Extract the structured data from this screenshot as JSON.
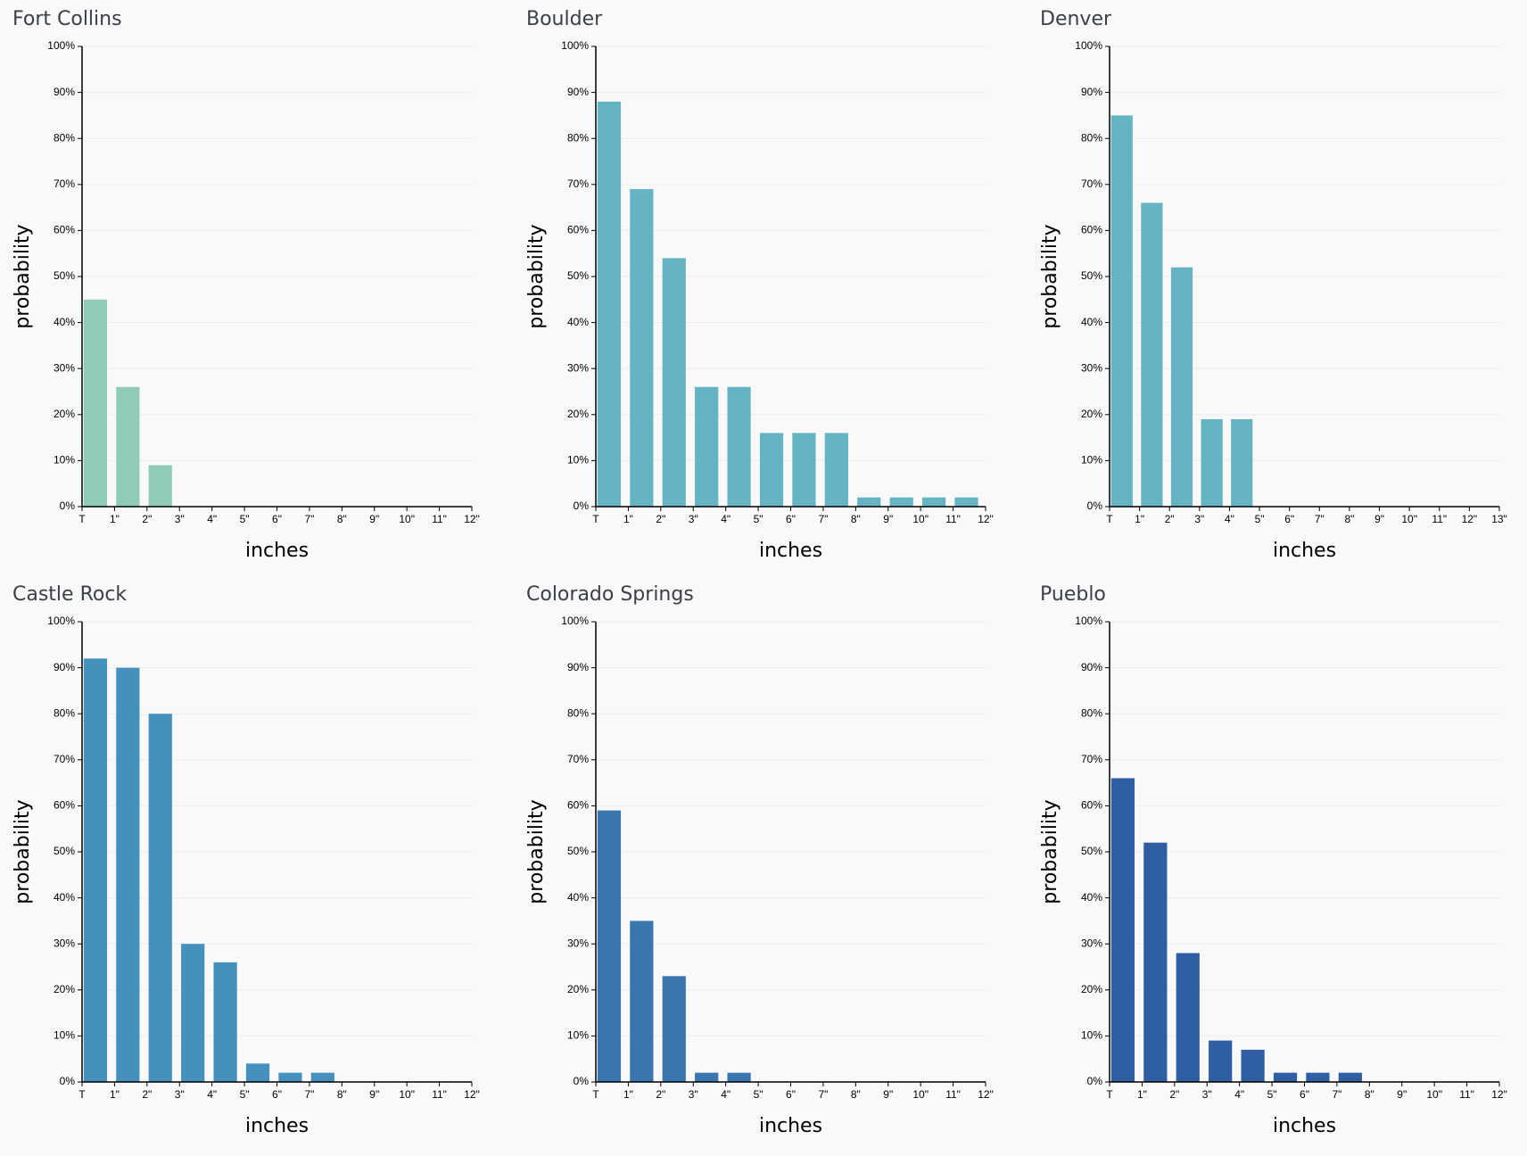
{
  "chart_data": [
    {
      "type": "histogram",
      "title": "Fort Collins",
      "xlabel": "inches",
      "ylabel": "probability",
      "color": "#8fcbb8",
      "grid": true,
      "bins": [
        0,
        1,
        2,
        3,
        4,
        5,
        6,
        7,
        8,
        9,
        10,
        11,
        12
      ],
      "values": [
        45,
        26,
        9,
        0,
        0,
        0,
        0,
        0,
        0,
        0,
        0,
        0
      ],
      "xlim": [
        0,
        12
      ],
      "xticks": [
        {
          "value": 0,
          "label": "T"
        },
        {
          "value": 1,
          "label": "1\""
        },
        {
          "value": 2,
          "label": "2\""
        },
        {
          "value": 3,
          "label": "3\""
        },
        {
          "value": 4,
          "label": "4\""
        },
        {
          "value": 5,
          "label": "5\""
        },
        {
          "value": 6,
          "label": "6\""
        },
        {
          "value": 7,
          "label": "7\""
        },
        {
          "value": 8,
          "label": "8\""
        },
        {
          "value": 9,
          "label": "9\""
        },
        {
          "value": 10,
          "label": "10\""
        },
        {
          "value": 11,
          "label": "11\""
        },
        {
          "value": 12,
          "label": "12\""
        }
      ],
      "ylim": [
        0,
        100
      ],
      "yticks": [
        {
          "value": 0,
          "label": "0%"
        },
        {
          "value": 10,
          "label": "10%"
        },
        {
          "value": 20,
          "label": "20%"
        },
        {
          "value": 30,
          "label": "30%"
        },
        {
          "value": 40,
          "label": "40%"
        },
        {
          "value": 50,
          "label": "50%"
        },
        {
          "value": 60,
          "label": "60%"
        },
        {
          "value": 70,
          "label": "70%"
        },
        {
          "value": 80,
          "label": "80%"
        },
        {
          "value": 90,
          "label": "90%"
        },
        {
          "value": 100,
          "label": "100%"
        }
      ]
    },
    {
      "type": "histogram",
      "title": "Boulder",
      "xlabel": "inches",
      "ylabel": "probability",
      "color": "#64b4c3",
      "grid": true,
      "bins": [
        0,
        1,
        2,
        3,
        4,
        5,
        6,
        7,
        8,
        9,
        10,
        11,
        12
      ],
      "values": [
        88,
        69,
        54,
        26,
        26,
        16,
        16,
        16,
        2,
        2,
        2,
        2
      ],
      "xlim": [
        0,
        12
      ],
      "xticks": [
        {
          "value": 0,
          "label": "T"
        },
        {
          "value": 1,
          "label": "1\""
        },
        {
          "value": 2,
          "label": "2\""
        },
        {
          "value": 3,
          "label": "3\""
        },
        {
          "value": 4,
          "label": "4\""
        },
        {
          "value": 5,
          "label": "5\""
        },
        {
          "value": 6,
          "label": "6\""
        },
        {
          "value": 7,
          "label": "7\""
        },
        {
          "value": 8,
          "label": "8\""
        },
        {
          "value": 9,
          "label": "9\""
        },
        {
          "value": 10,
          "label": "10\""
        },
        {
          "value": 11,
          "label": "11\""
        },
        {
          "value": 12,
          "label": "12\""
        }
      ],
      "ylim": [
        0,
        100
      ],
      "yticks": [
        {
          "value": 0,
          "label": "0%"
        },
        {
          "value": 10,
          "label": "10%"
        },
        {
          "value": 20,
          "label": "20%"
        },
        {
          "value": 30,
          "label": "30%"
        },
        {
          "value": 40,
          "label": "40%"
        },
        {
          "value": 50,
          "label": "50%"
        },
        {
          "value": 60,
          "label": "60%"
        },
        {
          "value": 70,
          "label": "70%"
        },
        {
          "value": 80,
          "label": "80%"
        },
        {
          "value": 90,
          "label": "90%"
        },
        {
          "value": 100,
          "label": "100%"
        }
      ]
    },
    {
      "type": "histogram",
      "title": "Denver",
      "xlabel": "inches",
      "ylabel": "probability",
      "color": "#64b4c3",
      "grid": true,
      "bins": [
        0,
        1,
        2,
        3,
        4,
        5,
        6,
        7,
        8,
        9,
        10,
        11,
        12,
        13
      ],
      "values": [
        85,
        66,
        52,
        19,
        19,
        0,
        0,
        0,
        0,
        0,
        0,
        0,
        0
      ],
      "xlim": [
        0,
        13
      ],
      "xticks": [
        {
          "value": 0,
          "label": "T"
        },
        {
          "value": 1,
          "label": "1\""
        },
        {
          "value": 2,
          "label": "2\""
        },
        {
          "value": 3,
          "label": "3\""
        },
        {
          "value": 4,
          "label": "4\""
        },
        {
          "value": 5,
          "label": "5\""
        },
        {
          "value": 6,
          "label": "6\""
        },
        {
          "value": 7,
          "label": "7\""
        },
        {
          "value": 8,
          "label": "8\""
        },
        {
          "value": 9,
          "label": "9\""
        },
        {
          "value": 10,
          "label": "10\""
        },
        {
          "value": 11,
          "label": "11\""
        },
        {
          "value": 12,
          "label": "12\""
        },
        {
          "value": 13,
          "label": "13\""
        }
      ],
      "ylim": [
        0,
        100
      ],
      "yticks": [
        {
          "value": 0,
          "label": "0%"
        },
        {
          "value": 10,
          "label": "10%"
        },
        {
          "value": 20,
          "label": "20%"
        },
        {
          "value": 30,
          "label": "30%"
        },
        {
          "value": 40,
          "label": "40%"
        },
        {
          "value": 50,
          "label": "50%"
        },
        {
          "value": 60,
          "label": "60%"
        },
        {
          "value": 70,
          "label": "70%"
        },
        {
          "value": 80,
          "label": "80%"
        },
        {
          "value": 90,
          "label": "90%"
        },
        {
          "value": 100,
          "label": "100%"
        }
      ]
    },
    {
      "type": "histogram",
      "title": "Castle Rock",
      "xlabel": "inches",
      "ylabel": "probability",
      "color": "#4591be",
      "grid": true,
      "bins": [
        0,
        1,
        2,
        3,
        4,
        5,
        6,
        7,
        8,
        9,
        10,
        11,
        12
      ],
      "values": [
        92,
        90,
        80,
        30,
        26,
        4,
        2,
        2,
        0,
        0,
        0,
        0
      ],
      "xlim": [
        0,
        12
      ],
      "xticks": [
        {
          "value": 0,
          "label": "T"
        },
        {
          "value": 1,
          "label": "1\""
        },
        {
          "value": 2,
          "label": "2\""
        },
        {
          "value": 3,
          "label": "3\""
        },
        {
          "value": 4,
          "label": "4\""
        },
        {
          "value": 5,
          "label": "5\""
        },
        {
          "value": 6,
          "label": "6\""
        },
        {
          "value": 7,
          "label": "7\""
        },
        {
          "value": 8,
          "label": "8\""
        },
        {
          "value": 9,
          "label": "9\""
        },
        {
          "value": 10,
          "label": "10\""
        },
        {
          "value": 11,
          "label": "11\""
        },
        {
          "value": 12,
          "label": "12\""
        }
      ],
      "ylim": [
        0,
        100
      ],
      "yticks": [
        {
          "value": 0,
          "label": "0%"
        },
        {
          "value": 10,
          "label": "10%"
        },
        {
          "value": 20,
          "label": "20%"
        },
        {
          "value": 30,
          "label": "30%"
        },
        {
          "value": 40,
          "label": "40%"
        },
        {
          "value": 50,
          "label": "50%"
        },
        {
          "value": 60,
          "label": "60%"
        },
        {
          "value": 70,
          "label": "70%"
        },
        {
          "value": 80,
          "label": "80%"
        },
        {
          "value": 90,
          "label": "90%"
        },
        {
          "value": 100,
          "label": "100%"
        }
      ]
    },
    {
      "type": "histogram",
      "title": "Colorado Springs",
      "xlabel": "inches",
      "ylabel": "probability",
      "color": "#3a76ae",
      "grid": true,
      "bins": [
        0,
        1,
        2,
        3,
        4,
        5,
        6,
        7,
        8,
        9,
        10,
        11,
        12
      ],
      "values": [
        59,
        35,
        23,
        2,
        2,
        0,
        0,
        0,
        0,
        0,
        0,
        0
      ],
      "xlim": [
        0,
        12
      ],
      "xticks": [
        {
          "value": 0,
          "label": "T"
        },
        {
          "value": 1,
          "label": "1\""
        },
        {
          "value": 2,
          "label": "2\""
        },
        {
          "value": 3,
          "label": "3\""
        },
        {
          "value": 4,
          "label": "4\""
        },
        {
          "value": 5,
          "label": "5\""
        },
        {
          "value": 6,
          "label": "6\""
        },
        {
          "value": 7,
          "label": "7\""
        },
        {
          "value": 8,
          "label": "8\""
        },
        {
          "value": 9,
          "label": "9\""
        },
        {
          "value": 10,
          "label": "10\""
        },
        {
          "value": 11,
          "label": "11\""
        },
        {
          "value": 12,
          "label": "12\""
        }
      ],
      "ylim": [
        0,
        100
      ],
      "yticks": [
        {
          "value": 0,
          "label": "0%"
        },
        {
          "value": 10,
          "label": "10%"
        },
        {
          "value": 20,
          "label": "20%"
        },
        {
          "value": 30,
          "label": "30%"
        },
        {
          "value": 40,
          "label": "40%"
        },
        {
          "value": 50,
          "label": "50%"
        },
        {
          "value": 60,
          "label": "60%"
        },
        {
          "value": 70,
          "label": "70%"
        },
        {
          "value": 80,
          "label": "80%"
        },
        {
          "value": 90,
          "label": "90%"
        },
        {
          "value": 100,
          "label": "100%"
        }
      ]
    },
    {
      "type": "histogram",
      "title": "Pueblo",
      "xlabel": "inches",
      "ylabel": "probability",
      "color": "#2f5ea2",
      "grid": true,
      "bins": [
        0,
        1,
        2,
        3,
        4,
        5,
        6,
        7,
        8,
        9,
        10,
        11,
        12
      ],
      "values": [
        66,
        52,
        28,
        9,
        7,
        2,
        2,
        2,
        0,
        0,
        0,
        0
      ],
      "xlim": [
        0,
        12
      ],
      "xticks": [
        {
          "value": 0,
          "label": "T"
        },
        {
          "value": 1,
          "label": "1\""
        },
        {
          "value": 2,
          "label": "2\""
        },
        {
          "value": 3,
          "label": "3\""
        },
        {
          "value": 4,
          "label": "4\""
        },
        {
          "value": 5,
          "label": "5\""
        },
        {
          "value": 6,
          "label": "6\""
        },
        {
          "value": 7,
          "label": "7\""
        },
        {
          "value": 8,
          "label": "8\""
        },
        {
          "value": 9,
          "label": "9\""
        },
        {
          "value": 10,
          "label": "10\""
        },
        {
          "value": 11,
          "label": "11\""
        },
        {
          "value": 12,
          "label": "12\""
        }
      ],
      "ylim": [
        0,
        100
      ],
      "yticks": [
        {
          "value": 0,
          "label": "0%"
        },
        {
          "value": 10,
          "label": "10%"
        },
        {
          "value": 20,
          "label": "20%"
        },
        {
          "value": 30,
          "label": "30%"
        },
        {
          "value": 40,
          "label": "40%"
        },
        {
          "value": 50,
          "label": "50%"
        },
        {
          "value": 60,
          "label": "60%"
        },
        {
          "value": 70,
          "label": "70%"
        },
        {
          "value": 80,
          "label": "80%"
        },
        {
          "value": 90,
          "label": "90%"
        },
        {
          "value": 100,
          "label": "100%"
        }
      ]
    }
  ]
}
